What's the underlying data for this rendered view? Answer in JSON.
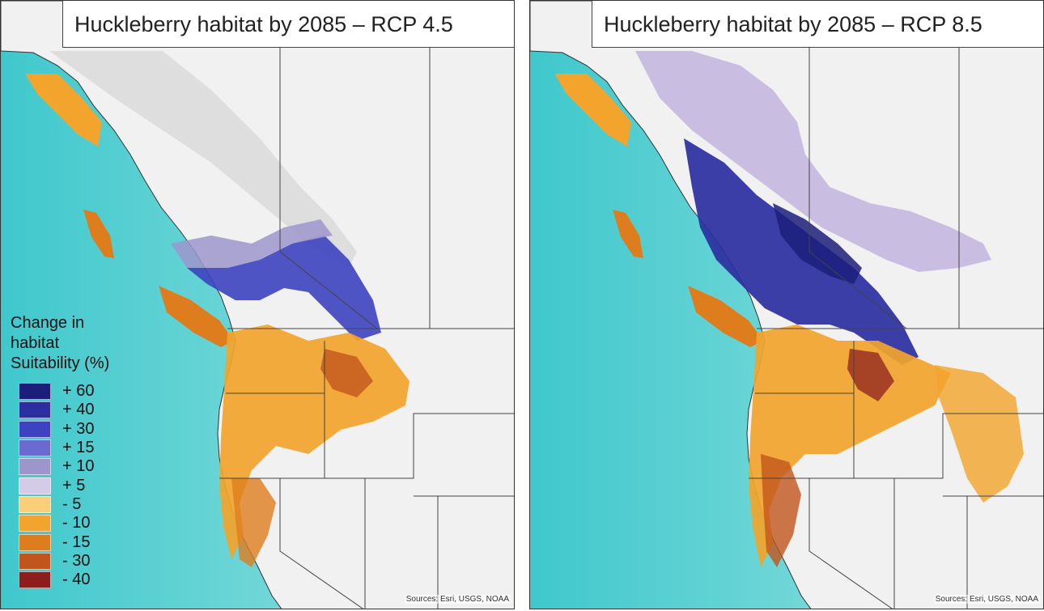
{
  "panels": [
    {
      "title": "Huckleberry habitat by 2085 – RCP 4.5",
      "sources": "Sources: Esri, USGS, NOAA",
      "scenario": "4.5"
    },
    {
      "title": "Huckleberry habitat by 2085 – RCP 8.5",
      "sources": "Sources: Esri, USGS, NOAA",
      "scenario": "8.5"
    }
  ],
  "legend": {
    "title_line1": "Change in habitat",
    "title_line2": "Suitability (%)",
    "items": [
      {
        "label": "+ 60",
        "color": "#1c1f7a"
      },
      {
        "label": "+ 40",
        "color": "#2b2fa0"
      },
      {
        "label": "+ 30",
        "color": "#3d43c0"
      },
      {
        "label": "+ 15",
        "color": "#6a6ad0"
      },
      {
        "label": "+ 10",
        "color": "#9c96cc"
      },
      {
        "label": "+ 5",
        "color": "#d4cbe6"
      },
      {
        "label": "- 5",
        "color": "#fbcf7a"
      },
      {
        "label": "- 10",
        "color": "#f2a42c"
      },
      {
        "label": "- 15",
        "color": "#de7d1e"
      },
      {
        "label": "- 30",
        "color": "#c2551d"
      },
      {
        "label": "- 40",
        "color": "#8c1f1d"
      }
    ]
  },
  "colors": {
    "ocean": "#5ccfd2",
    "land": "#f3f3f3",
    "border": "#555555"
  }
}
